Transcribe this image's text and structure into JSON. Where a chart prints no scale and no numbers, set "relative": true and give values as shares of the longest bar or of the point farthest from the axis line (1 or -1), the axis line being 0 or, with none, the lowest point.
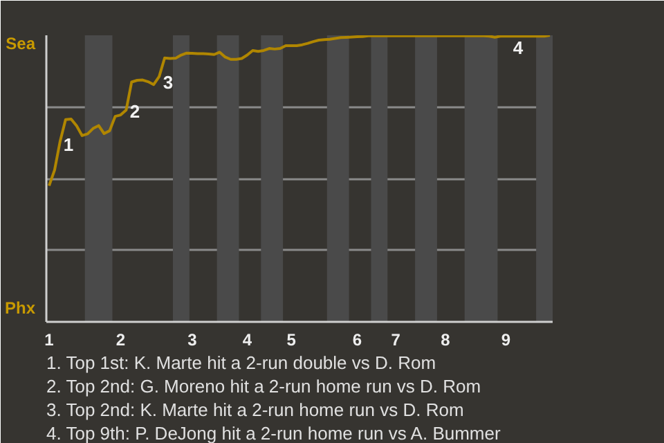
{
  "chart_data": {
    "type": "line",
    "categories": [
      "1",
      null,
      null,
      null,
      null,
      null,
      null,
      null,
      null,
      null,
      null,
      null,
      null,
      "2",
      null,
      null,
      null,
      null,
      null,
      null,
      null,
      null,
      null,
      null,
      null,
      null,
      "3",
      null,
      null,
      null,
      null,
      null,
      null,
      null,
      null,
      null,
      "4",
      null,
      null,
      null,
      null,
      null,
      null,
      null,
      "5",
      null,
      null,
      null,
      null,
      null,
      null,
      null,
      null,
      null,
      null,
      null,
      "6",
      null,
      null,
      null,
      null,
      null,
      null,
      "7",
      null,
      null,
      null,
      null,
      null,
      null,
      null,
      null,
      "8",
      null,
      null,
      null,
      null,
      null,
      null,
      null,
      null,
      null,
      null,
      "9",
      null,
      null,
      null,
      null,
      null,
      null,
      null,
      null
    ],
    "series": [
      {
        "color": "#b08600",
        "values": [
          0.475,
          0.53,
          0.63,
          0.706,
          0.708,
          0.684,
          0.65,
          0.656,
          0.675,
          0.685,
          0.657,
          0.667,
          0.717,
          0.722,
          0.739,
          0.837,
          0.843,
          0.844,
          0.838,
          0.828,
          0.856,
          0.921,
          0.919,
          0.92,
          0.931,
          0.938,
          0.937,
          0.936,
          0.936,
          0.935,
          0.933,
          0.941,
          0.924,
          0.916,
          0.916,
          0.919,
          0.931,
          0.947,
          0.944,
          0.947,
          0.954,
          0.952,
          0.954,
          0.964,
          0.964,
          0.964,
          0.967,
          0.972,
          0.978,
          0.983,
          0.985,
          0.986,
          0.989,
          0.992,
          0.993,
          0.994,
          0.995,
          0.996,
          0.998,
          0.998,
          0.998,
          0.998,
          0.998,
          0.998,
          0.998,
          0.998,
          0.998,
          0.998,
          0.998,
          0.998,
          0.998,
          0.998,
          0.998,
          0.998,
          0.998,
          0.998,
          0.998,
          0.998,
          0.998,
          0.998,
          0.997,
          0.993,
          0.997,
          0.997,
          0.997,
          0.997,
          0.997,
          0.997,
          0.997,
          0.997,
          0.997,
          1
        ]
      }
    ],
    "relative": true,
    "grid": "y",
    "marker": "none",
    "line_style": "solid",
    "annotations": [
      "Sea",
      "Phx",
      "1",
      "2",
      "3",
      "4",
      "1. Top 1st: K. Marte hit a 2-run double vs D. Rom",
      "2. Top 2nd: G. Moreno hit a 2-run home run vs D. Rom",
      "3. Top 2nd: K. Marte hit a 2-run home run vs D. Rom",
      "4. Top 9th: P. DeJong hit a 2-run home run vs A. Bummer"
    ]
  }
}
